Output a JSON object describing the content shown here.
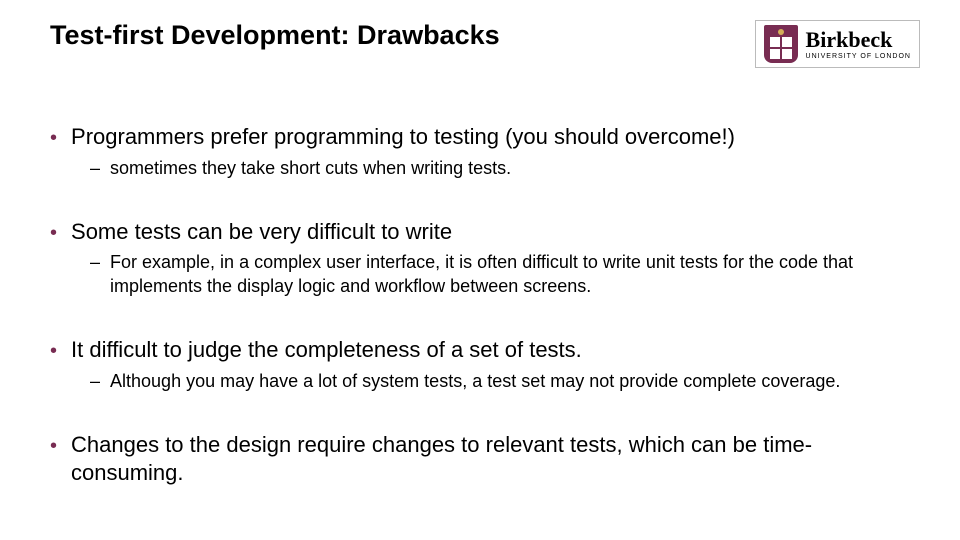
{
  "title": "Test-first Development: Drawbacks",
  "logo": {
    "name": "Birkbeck",
    "sub": "UNIVERSITY OF LONDON"
  },
  "colors": {
    "accent": "#782c52",
    "text": "#000000",
    "bg": "#ffffff"
  },
  "bullets": [
    {
      "text": "Programmers prefer programming to testing (you should overcome!)",
      "subs": [
        "sometimes they take short cuts when writing tests."
      ]
    },
    {
      "text": "Some tests can be very difficult to write",
      "subs": [
        "For example, in a complex user interface, it is often difficult to write unit tests for the code that implements the display logic and workflow between screens."
      ]
    },
    {
      "text": "It difficult to judge the completeness of a set of tests.",
      "subs": [
        "Although you may have a lot of system tests, a test set may not provide complete coverage."
      ]
    },
    {
      "text": "Changes to the design require changes to relevant tests, which can be time-consuming.",
      "subs": []
    }
  ]
}
